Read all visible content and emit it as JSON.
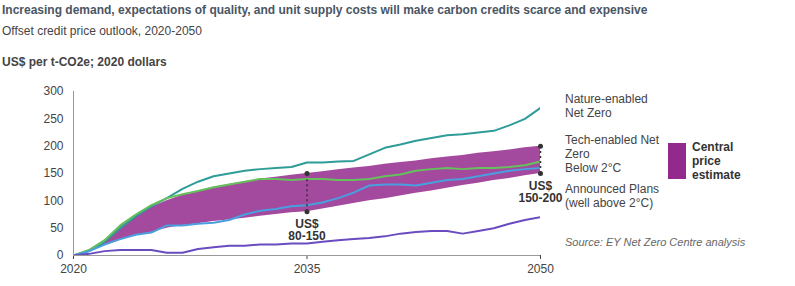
{
  "chart_data": {
    "type": "line",
    "title": "Increasing demand, expectations of quality, and unit supply costs will make carbon credits scarce and expensive",
    "subtitle": "Offset credit price outlook, 2020-2050",
    "y_label": "US$ per t-CO2e; 2020 dollars",
    "source": "Source: EY Net Zero Centre analysis",
    "x": [
      2020,
      2021,
      2022,
      2023,
      2024,
      2025,
      2026,
      2027,
      2028,
      2029,
      2030,
      2031,
      2032,
      2033,
      2034,
      2035,
      2036,
      2037,
      2038,
      2039,
      2040,
      2041,
      2042,
      2043,
      2044,
      2045,
      2046,
      2047,
      2048,
      2049,
      2050
    ],
    "series": [
      {
        "name": "Nature-enabled Net Zero",
        "color": "#2e9c98",
        "values": [
          0,
          8,
          25,
          50,
          72,
          90,
          105,
          122,
          135,
          145,
          150,
          155,
          158,
          160,
          162,
          170,
          170,
          172,
          173,
          185,
          197,
          203,
          210,
          215,
          220,
          222,
          225,
          228,
          238,
          250,
          270
        ]
      },
      {
        "name": "Tech-enabled Net Zero",
        "color": "#66c05c",
        "values": [
          0,
          10,
          28,
          55,
          75,
          92,
          105,
          112,
          118,
          125,
          130,
          135,
          140,
          140,
          138,
          140,
          140,
          138,
          138,
          140,
          145,
          148,
          155,
          158,
          160,
          158,
          160,
          160,
          162,
          165,
          172
        ]
      },
      {
        "name": "Below 2°C",
        "color": "#4a9fe0",
        "values": [
          0,
          8,
          20,
          30,
          38,
          42,
          55,
          55,
          58,
          60,
          65,
          75,
          82,
          85,
          90,
          92,
          97,
          105,
          115,
          128,
          130,
          130,
          128,
          133,
          138,
          140,
          145,
          150,
          155,
          158,
          160
        ]
      },
      {
        "name": "Announced Plans (well above 2°C)",
        "color": "#6a4cc0",
        "values": [
          0,
          3,
          8,
          10,
          10,
          10,
          5,
          5,
          12,
          15,
          18,
          18,
          20,
          20,
          22,
          22,
          25,
          28,
          30,
          32,
          35,
          40,
          43,
          45,
          45,
          40,
          45,
          50,
          58,
          65,
          70
        ]
      }
    ],
    "band": {
      "name": "Central price estimate",
      "color": "#93298d",
      "lower": [
        0,
        8,
        18,
        28,
        36,
        42,
        50,
        55,
        58,
        62,
        65,
        68,
        72,
        75,
        78,
        80,
        85,
        90,
        95,
        100,
        104,
        109,
        114,
        118,
        123,
        128,
        132,
        137,
        141,
        146,
        150
      ],
      "upper": [
        0,
        10,
        28,
        52,
        72,
        88,
        100,
        110,
        118,
        125,
        130,
        135,
        140,
        143,
        147,
        150,
        153,
        157,
        160,
        163,
        167,
        170,
        173,
        177,
        180,
        183,
        187,
        190,
        193,
        197,
        200
      ]
    },
    "annotations": [
      {
        "x": 2035,
        "from": 80,
        "to": 150,
        "label": "US$\n80-150"
      },
      {
        "x": 2050,
        "from": 150,
        "to": 200,
        "label": "US$\n150-200"
      }
    ],
    "xlim": [
      2020,
      2050
    ],
    "xticks": [
      2020,
      2035,
      2050
    ],
    "ylim": [
      0,
      300
    ],
    "yticks": [
      0,
      50,
      100,
      150,
      200,
      250,
      300
    ],
    "grid": false,
    "legend": "right"
  }
}
